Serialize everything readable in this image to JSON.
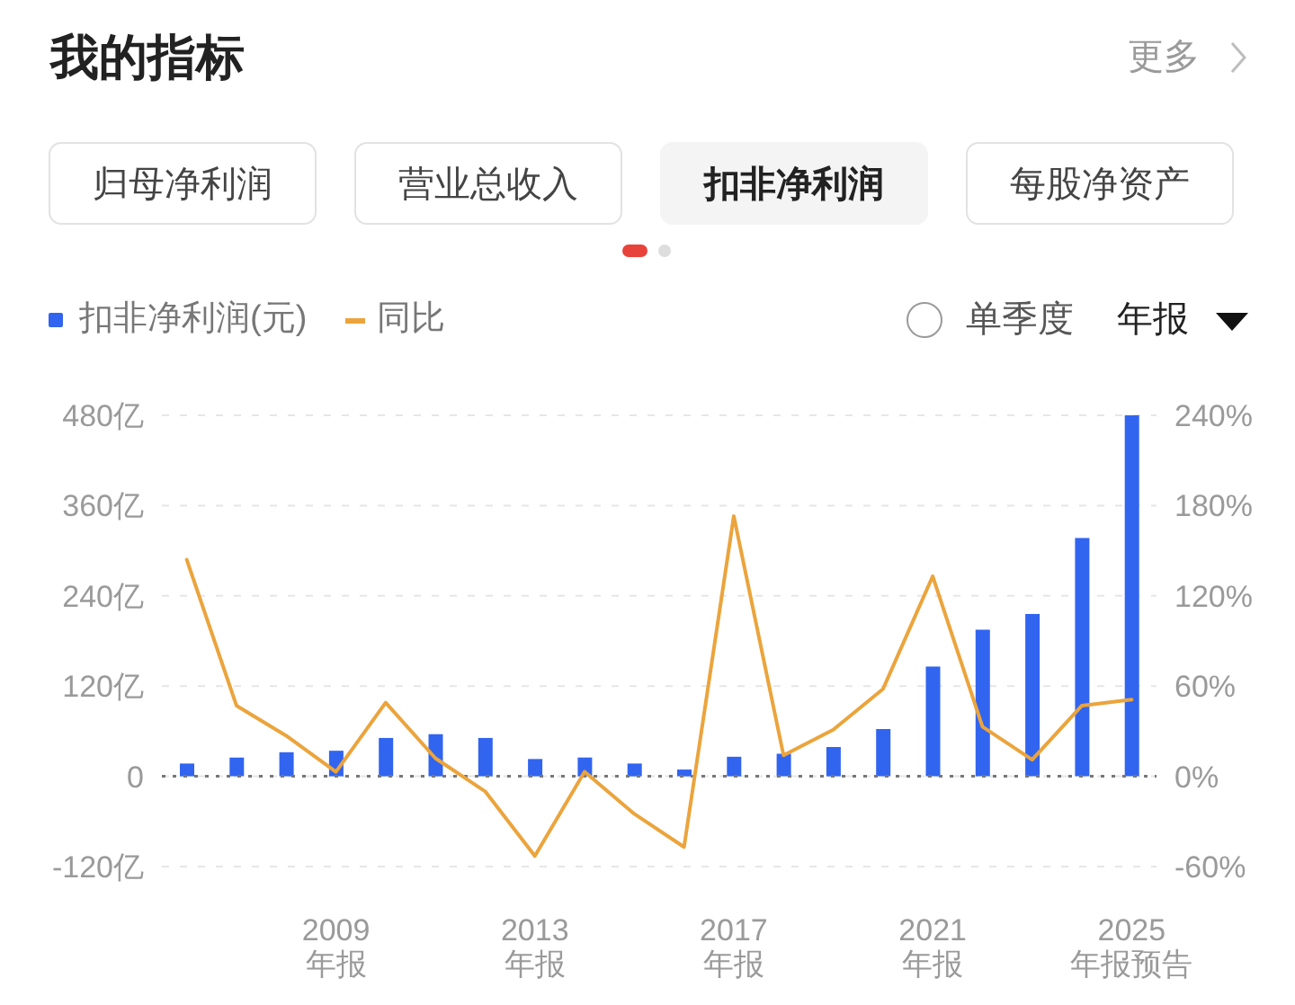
{
  "chart_data": {
    "type": "bar",
    "title": "我的指标",
    "annotations": [
      "更多",
      "归母净利润",
      "营业总收入",
      "扣非净利润",
      "每股净资产",
      "单季度",
      "年报"
    ],
    "categories": [
      null,
      null,
      null,
      "2009\n年报",
      null,
      null,
      null,
      "2013\n年报",
      null,
      null,
      null,
      "2017\n年报",
      null,
      null,
      null,
      "2021\n年报",
      null,
      null,
      null,
      "2025\n年报预告"
    ],
    "series": [
      {
        "name": "扣非净利润(元)",
        "color": "#3165f0",
        "values": [
          17,
          25,
          32,
          34,
          51,
          56,
          51,
          23,
          25,
          17,
          9,
          26,
          30,
          39,
          63,
          146,
          195,
          216,
          317,
          480
        ]
      },
      {
        "name": "同比",
        "type": "line",
        "axis": "y2",
        "color": "#eba43c",
        "values": [
          144,
          47,
          27,
          3,
          49,
          12,
          -10,
          -53,
          3,
          -25,
          -47,
          173,
          14,
          31,
          58,
          133,
          33,
          11,
          47,
          51
        ]
      }
    ],
    "ylim": [
      -120,
      480
    ],
    "yticks": [
      {
        "value": -120,
        "label": "-120亿"
      },
      0,
      {
        "value": 120,
        "label": "120亿"
      },
      {
        "value": 240,
        "label": "240亿"
      },
      {
        "value": 360,
        "label": "360亿"
      },
      {
        "value": 480,
        "label": "480亿"
      }
    ],
    "y2lim": [
      -60,
      240
    ],
    "y2ticks": [
      {
        "value": -60,
        "label": "-60%"
      },
      {
        "value": 0,
        "label": "0%"
      },
      {
        "value": 60,
        "label": "60%"
      },
      {
        "value": 120,
        "label": "120%"
      },
      {
        "value": 180,
        "label": "180%"
      },
      {
        "value": 240,
        "label": "240%"
      }
    ],
    "ref_lines": [
      {
        "axis": "y",
        "value": 0,
        "color": "#777777",
        "line_style": "dotted"
      }
    ],
    "grid": "y",
    "legend": "top left",
    "marker": "none"
  }
}
